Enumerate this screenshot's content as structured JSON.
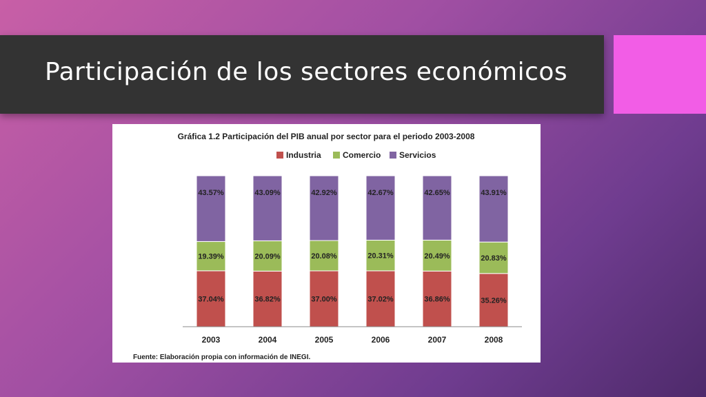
{
  "slide": {
    "title": "Participación de los sectores económicos"
  },
  "colors": {
    "title_bar": "#333333",
    "accent": "#f25de6",
    "industria": "#c0504d",
    "comercio": "#9bbb59",
    "servicios": "#8064a2"
  },
  "chart_data": {
    "type": "bar",
    "stacked": true,
    "title": "Gráfica 1.2 Participación del PIB anual por sector para el periodo 2003-2008",
    "categories": [
      "2003",
      "2004",
      "2005",
      "2006",
      "2007",
      "2008"
    ],
    "series": [
      {
        "name": "Industria",
        "color": "#c0504d",
        "values": [
          37.04,
          36.82,
          37.0,
          37.02,
          36.86,
          35.26
        ],
        "labels": [
          "37.04%",
          "36.82%",
          "37.00%",
          "37.02%",
          "36.86%",
          "35.26%"
        ]
      },
      {
        "name": "Comercio",
        "color": "#9bbb59",
        "values": [
          19.39,
          20.09,
          20.08,
          20.31,
          20.49,
          20.83
        ],
        "labels": [
          "19.39%",
          "20.09%",
          "20.08%",
          "20.31%",
          "20.49%",
          "20.83%"
        ]
      },
      {
        "name": "Servicios",
        "color": "#8064a2",
        "values": [
          43.57,
          43.09,
          42.92,
          42.67,
          42.65,
          43.91
        ],
        "labels": [
          "43.57%",
          "43.09%",
          "42.92%",
          "42.67%",
          "42.65%",
          "43.91%"
        ]
      }
    ],
    "legend_position": "top",
    "grid": false,
    "ylim": [
      0,
      100
    ],
    "source": "Fuente: Elaboración propia con información de INEGI."
  }
}
